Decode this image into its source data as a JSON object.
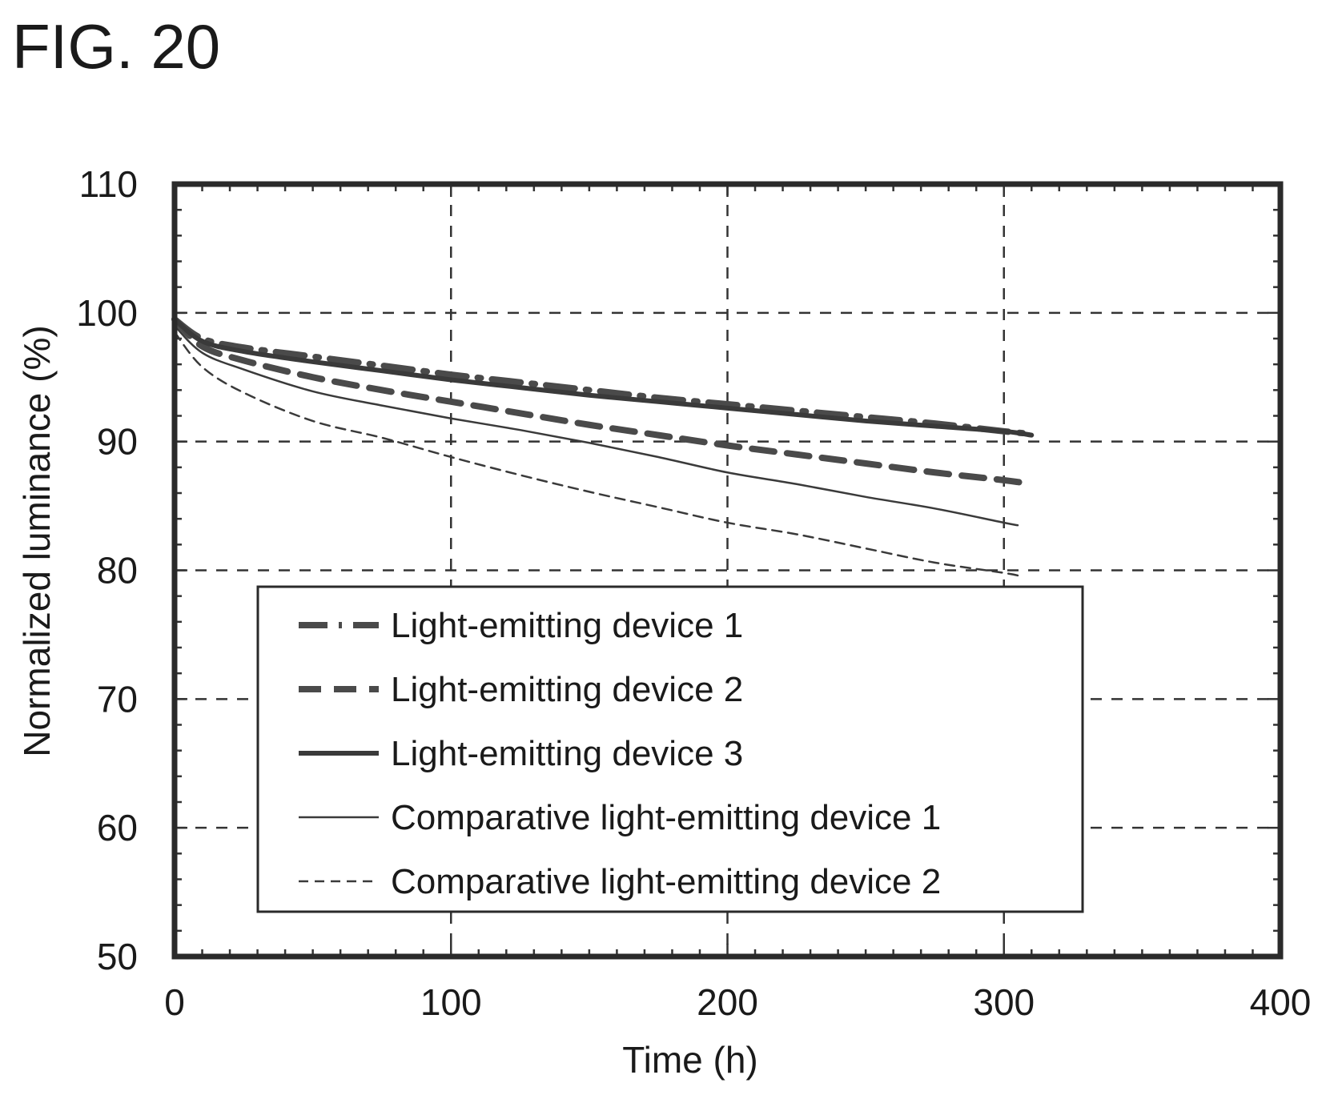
{
  "figure_label": "FIG. 20",
  "chart_data": {
    "type": "line",
    "title": "",
    "xlabel": "Time (h)",
    "ylabel": "Normalized luminance (%)",
    "xlim": [
      0,
      400
    ],
    "ylim": [
      50,
      110
    ],
    "xticks": [
      0,
      100,
      200,
      300,
      400
    ],
    "yticks": [
      50,
      60,
      70,
      80,
      90,
      100,
      110
    ],
    "grid": true,
    "legend_position": "lower-center",
    "series": [
      {
        "name": "Light-emitting device 1",
        "style": "dash-dot",
        "x": [
          0,
          10,
          25,
          50,
          75,
          100,
          125,
          150,
          175,
          200,
          225,
          250,
          275,
          300,
          310
        ],
        "y": [
          99.5,
          98.0,
          97.3,
          96.6,
          95.9,
          95.2,
          94.6,
          94.0,
          93.4,
          92.9,
          92.4,
          91.9,
          91.4,
          90.8,
          90.6
        ]
      },
      {
        "name": "Light-emitting device 2",
        "style": "dashed",
        "x": [
          0,
          10,
          25,
          50,
          75,
          100,
          125,
          150,
          175,
          200,
          225,
          250,
          275,
          300,
          310
        ],
        "y": [
          99.5,
          97.4,
          96.3,
          95.0,
          94.0,
          93.1,
          92.2,
          91.3,
          90.5,
          89.7,
          89.0,
          88.3,
          87.6,
          87.0,
          86.7
        ]
      },
      {
        "name": "Light-emitting device 3",
        "style": "solid-thick",
        "x": [
          0,
          10,
          25,
          50,
          75,
          100,
          125,
          150,
          175,
          200,
          225,
          250,
          275,
          300,
          310
        ],
        "y": [
          99.5,
          97.8,
          97.0,
          96.2,
          95.5,
          94.8,
          94.2,
          93.6,
          93.1,
          92.6,
          92.1,
          91.6,
          91.2,
          90.8,
          90.5
        ]
      },
      {
        "name": "Comparative light-emitting device 1",
        "style": "solid-thin",
        "x": [
          0,
          10,
          25,
          50,
          75,
          100,
          125,
          150,
          175,
          200,
          225,
          250,
          275,
          300,
          305
        ],
        "y": [
          99.0,
          96.9,
          95.6,
          93.9,
          92.8,
          91.8,
          90.9,
          89.9,
          88.8,
          87.6,
          86.7,
          85.7,
          84.8,
          83.7,
          83.5
        ]
      },
      {
        "name": "Comparative light-emitting device 2",
        "style": "dashed-thin",
        "x": [
          0,
          10,
          25,
          50,
          75,
          100,
          125,
          150,
          175,
          200,
          225,
          250,
          275,
          300,
          305
        ],
        "y": [
          98.5,
          95.8,
          93.8,
          91.6,
          90.3,
          88.8,
          87.4,
          86.1,
          84.9,
          83.7,
          82.8,
          81.7,
          80.6,
          79.8,
          79.6
        ]
      }
    ]
  }
}
